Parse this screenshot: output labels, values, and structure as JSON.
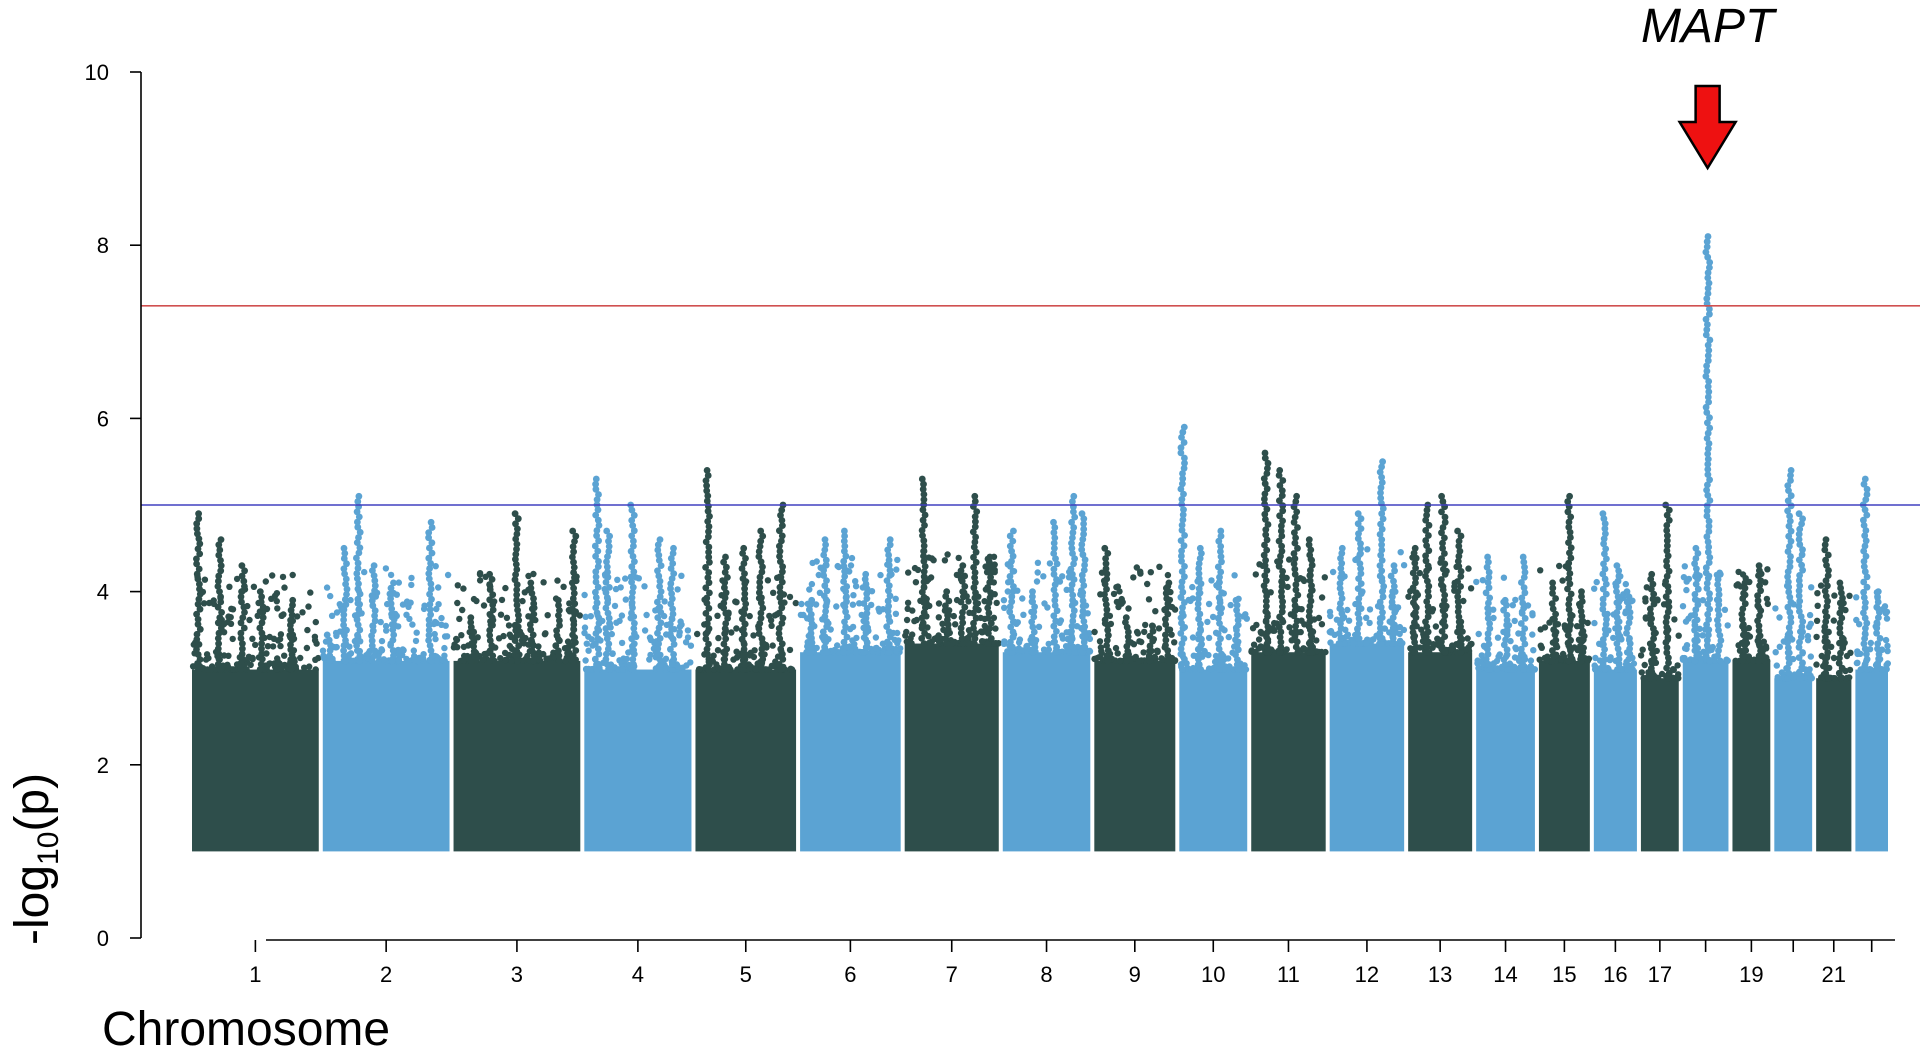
{
  "chart_data": {
    "type": "scatter",
    "subtype": "manhattan",
    "title": "",
    "xlabel": "Chromosome",
    "ylabel_main": "-log",
    "ylabel_sub": "10",
    "ylabel_tail": "(p)",
    "ylim": [
      0,
      10
    ],
    "yticks": [
      0,
      2,
      4,
      6,
      8,
      10
    ],
    "xlim": [
      0,
      22
    ],
    "grid": false,
    "legend": "none",
    "colors": {
      "light": "#5ba3d3",
      "dark": "#2e4e4b",
      "threshold_genome": "#d05050",
      "threshold_suggestive": "#4040c0",
      "arrow": "#ee1111"
    },
    "chromosome_tick_labels": [
      "1",
      "2",
      "3",
      "4",
      "5",
      "6",
      "7",
      "8",
      "9",
      "10",
      "11",
      "12",
      "13",
      "14",
      "15",
      "16",
      "17",
      "",
      "19",
      "",
      "21",
      ""
    ],
    "thresholds": [
      {
        "y": 7.3,
        "color": "#d05050"
      },
      {
        "y": 5.0,
        "color": "#4040c0"
      }
    ],
    "annotation": {
      "text": "MAPT",
      "chromosome": 17
    },
    "chromosomes": [
      {
        "chr": 1,
        "start": 0.0,
        "end": 1.0,
        "color": "dark",
        "base_max": 3.1,
        "top": 4.9,
        "peaks": [
          [
            0.05,
            4.9
          ],
          [
            0.22,
            4.6
          ],
          [
            0.4,
            4.3
          ],
          [
            0.55,
            4.0
          ],
          [
            0.78,
            3.9
          ]
        ]
      },
      {
        "chr": 2,
        "start": 1.0,
        "end": 2.0,
        "color": "light",
        "base_max": 3.2,
        "top": 5.1,
        "peaks": [
          [
            0.05,
            3.5
          ],
          [
            0.18,
            4.5
          ],
          [
            0.28,
            5.1
          ],
          [
            0.4,
            4.3
          ],
          [
            0.55,
            4.1
          ],
          [
            0.85,
            4.8
          ]
        ]
      },
      {
        "chr": 3,
        "start": 2.0,
        "end": 3.0,
        "color": "dark",
        "base_max": 3.2,
        "top": 4.9,
        "peaks": [
          [
            0.15,
            3.7
          ],
          [
            0.3,
            4.2
          ],
          [
            0.5,
            4.9
          ],
          [
            0.62,
            4.1
          ],
          [
            0.82,
            3.9
          ],
          [
            0.95,
            4.7
          ]
        ]
      },
      {
        "chr": 4,
        "start": 3.0,
        "end": 3.85,
        "color": "light",
        "base_max": 3.1,
        "top": 5.3,
        "peaks": [
          [
            0.12,
            5.3
          ],
          [
            0.22,
            4.7
          ],
          [
            0.45,
            5.0
          ],
          [
            0.7,
            4.6
          ],
          [
            0.82,
            4.5
          ]
        ]
      },
      {
        "chr": 5,
        "start": 3.85,
        "end": 4.65,
        "color": "dark",
        "base_max": 3.1,
        "top": 5.4,
        "peaks": [
          [
            0.12,
            5.4
          ],
          [
            0.3,
            4.4
          ],
          [
            0.48,
            4.5
          ],
          [
            0.65,
            4.7
          ],
          [
            0.85,
            5.0
          ]
        ]
      },
      {
        "chr": 6,
        "start": 4.65,
        "end": 5.45,
        "color": "light",
        "base_max": 3.3,
        "top": 4.7,
        "peaks": [
          [
            0.1,
            3.9
          ],
          [
            0.25,
            4.6
          ],
          [
            0.45,
            4.7
          ],
          [
            0.65,
            4.2
          ],
          [
            0.88,
            4.6
          ]
        ]
      },
      {
        "chr": 7,
        "start": 5.45,
        "end": 6.2,
        "color": "dark",
        "base_max": 3.4,
        "top": 5.3,
        "peaks": [
          [
            0.2,
            5.3
          ],
          [
            0.45,
            4.0
          ],
          [
            0.62,
            4.3
          ],
          [
            0.75,
            5.1
          ],
          [
            0.9,
            4.4
          ]
        ]
      },
      {
        "chr": 8,
        "start": 6.2,
        "end": 6.9,
        "color": "light",
        "base_max": 3.3,
        "top": 5.1,
        "peaks": [
          [
            0.1,
            4.7
          ],
          [
            0.35,
            4.0
          ],
          [
            0.6,
            4.8
          ],
          [
            0.8,
            5.1
          ],
          [
            0.92,
            4.9
          ]
        ]
      },
      {
        "chr": 9,
        "start": 6.9,
        "end": 7.55,
        "color": "dark",
        "base_max": 3.2,
        "top": 4.5,
        "peaks": [
          [
            0.15,
            4.5
          ],
          [
            0.4,
            3.7
          ],
          [
            0.7,
            3.6
          ],
          [
            0.9,
            4.1
          ]
        ]
      },
      {
        "chr": 10,
        "start": 7.55,
        "end": 8.1,
        "color": "light",
        "base_max": 3.1,
        "top": 5.9,
        "peaks": [
          [
            0.05,
            5.9
          ],
          [
            0.3,
            4.5
          ],
          [
            0.6,
            4.7
          ],
          [
            0.85,
            3.9
          ]
        ]
      },
      {
        "chr": 11,
        "start": 8.1,
        "end": 8.7,
        "color": "dark",
        "base_max": 3.3,
        "top": 5.6,
        "peaks": [
          [
            0.2,
            5.6
          ],
          [
            0.4,
            5.4
          ],
          [
            0.6,
            5.1
          ],
          [
            0.8,
            4.6
          ]
        ]
      },
      {
        "chr": 12,
        "start": 8.7,
        "end": 9.3,
        "color": "light",
        "base_max": 3.4,
        "top": 5.5,
        "peaks": [
          [
            0.15,
            4.5
          ],
          [
            0.4,
            4.9
          ],
          [
            0.7,
            5.5
          ],
          [
            0.85,
            4.3
          ]
        ]
      },
      {
        "chr": 13,
        "start": 9.3,
        "end": 9.82,
        "color": "dark",
        "base_max": 3.3,
        "top": 5.1,
        "peaks": [
          [
            0.1,
            4.5
          ],
          [
            0.3,
            5.0
          ],
          [
            0.55,
            5.1
          ],
          [
            0.8,
            4.7
          ]
        ]
      },
      {
        "chr": 14,
        "start": 9.82,
        "end": 10.3,
        "color": "light",
        "base_max": 3.1,
        "top": 4.4,
        "peaks": [
          [
            0.2,
            4.4
          ],
          [
            0.5,
            3.9
          ],
          [
            0.8,
            4.4
          ]
        ]
      },
      {
        "chr": 15,
        "start": 10.3,
        "end": 10.72,
        "color": "dark",
        "base_max": 3.2,
        "top": 5.1,
        "peaks": [
          [
            0.3,
            4.1
          ],
          [
            0.6,
            5.1
          ],
          [
            0.85,
            4.0
          ]
        ]
      },
      {
        "chr": 16,
        "start": 10.72,
        "end": 11.08,
        "color": "light",
        "base_max": 3.1,
        "top": 4.9,
        "peaks": [
          [
            0.25,
            4.9
          ],
          [
            0.55,
            4.3
          ],
          [
            0.8,
            4.0
          ]
        ]
      },
      {
        "chr": 17,
        "start": 11.08,
        "end": 11.4,
        "color": "dark",
        "base_max": 3.0,
        "top": 5.0,
        "peaks": [
          [
            0.3,
            4.2
          ],
          [
            0.7,
            5.0
          ]
        ]
      },
      {
        "chr": 18,
        "start": 11.4,
        "end": 11.78,
        "color": "light",
        "base_max": 3.2,
        "top": 8.1,
        "peaks": [
          [
            0.3,
            4.5
          ],
          [
            0.55,
            8.1
          ],
          [
            0.8,
            4.2
          ]
        ]
      },
      {
        "chr": 19,
        "start": 11.78,
        "end": 12.1,
        "color": "dark",
        "base_max": 3.2,
        "top": 4.3,
        "peaks": [
          [
            0.3,
            4.1
          ],
          [
            0.7,
            4.3
          ]
        ]
      },
      {
        "chr": 20,
        "start": 12.1,
        "end": 12.42,
        "color": "light",
        "base_max": 3.0,
        "top": 5.4,
        "peaks": [
          [
            0.4,
            5.4
          ],
          [
            0.7,
            4.9
          ]
        ]
      },
      {
        "chr": 21,
        "start": 12.42,
        "end": 12.72,
        "color": "dark",
        "base_max": 3.0,
        "top": 4.6,
        "peaks": [
          [
            0.3,
            4.6
          ],
          [
            0.7,
            4.1
          ]
        ]
      },
      {
        "chr": 22,
        "start": 12.72,
        "end": 13.0,
        "color": "light",
        "base_max": 3.1,
        "top": 5.3,
        "peaks": [
          [
            0.3,
            5.3
          ],
          [
            0.7,
            4.0
          ]
        ]
      }
    ]
  }
}
